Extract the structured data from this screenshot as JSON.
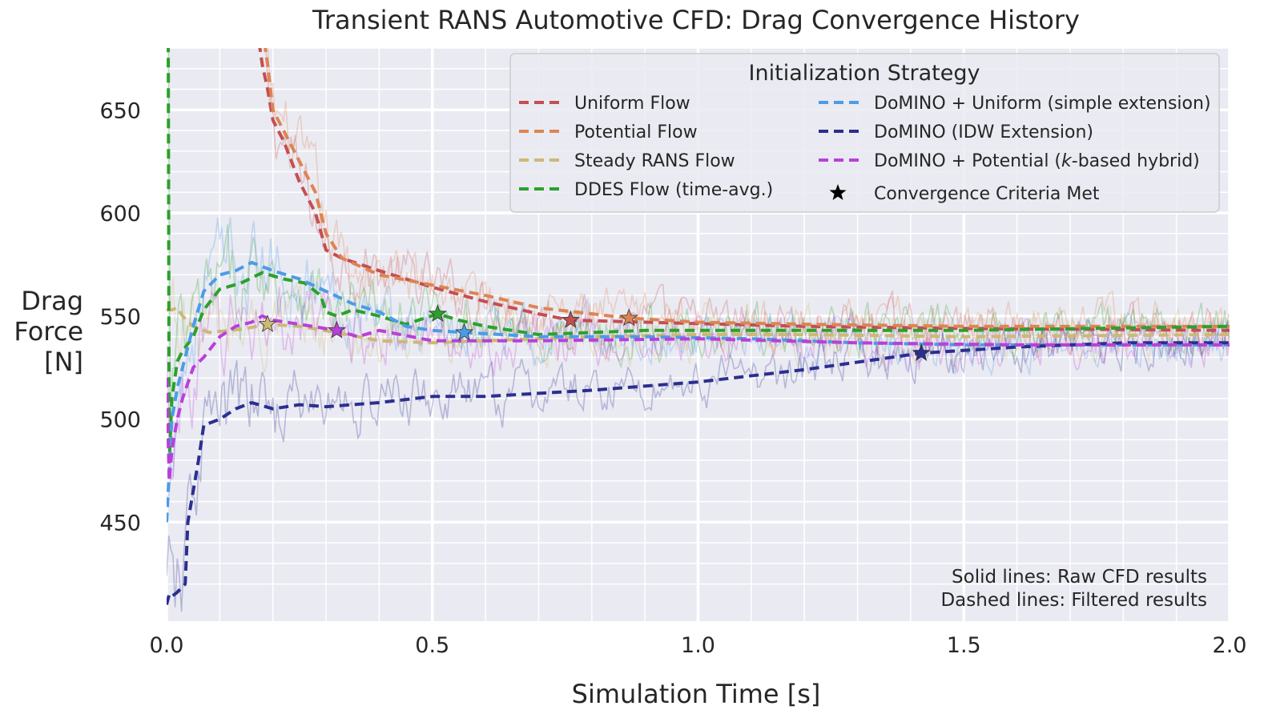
{
  "chart_data": {
    "type": "line",
    "title": "Transient RANS Automotive CFD: Drag Convergence History",
    "xlabel": "Simulation Time [s]",
    "ylabel": [
      "Drag",
      "Force",
      "[N]"
    ],
    "xlim": [
      0,
      2.0
    ],
    "ylim": [
      402,
      680
    ],
    "xticks": [
      0.0,
      0.5,
      1.0,
      1.5,
      2.0
    ],
    "xtick_labels": [
      "0.0",
      "0.5",
      "1.0",
      "1.5",
      "2.0"
    ],
    "yticks": [
      450,
      500,
      550,
      600,
      650
    ],
    "ytick_labels": [
      "450",
      "500",
      "550",
      "600",
      "650"
    ],
    "grid": true,
    "legend": {
      "title": "Initialization Strategy",
      "placement": "top-right",
      "entries": [
        "Uniform Flow",
        "Potential Flow",
        "Steady RANS Flow",
        "DDES Flow (time-avg.)",
        "DoMINO + Uniform (simple extension)",
        "DoMINO (IDW Extension)",
        "DoMINO + Potential (",
        "k",
        "-based hybrid)",
        "Convergence Criteria Met"
      ]
    },
    "annotations": [
      "Solid lines: Raw CFD results",
      "Dashed lines: Filtered results"
    ],
    "series": [
      {
        "name": "Uniform Flow",
        "color": "#c44e52",
        "x": [
          0.17,
          0.18,
          0.19,
          0.2,
          0.22,
          0.25,
          0.28,
          0.3,
          0.33,
          0.4,
          0.5,
          0.6,
          0.7,
          0.76,
          0.9,
          1.2,
          1.5,
          2.0
        ],
        "filtered": [
          690,
          672,
          660,
          645,
          635,
          615,
          600,
          582,
          578,
          572,
          564,
          557,
          551,
          548,
          547,
          545,
          544,
          543
        ],
        "converged_at": [
          0.76,
          548
        ]
      },
      {
        "name": "Potential Flow",
        "color": "#dd8452",
        "x": [
          0.18,
          0.19,
          0.2,
          0.22,
          0.25,
          0.28,
          0.3,
          0.33,
          0.4,
          0.5,
          0.6,
          0.7,
          0.87,
          1.0,
          1.2,
          1.5,
          2.0
        ],
        "filtered": [
          690,
          672,
          650,
          640,
          625,
          610,
          590,
          578,
          570,
          565,
          560,
          554,
          549,
          547,
          546,
          545,
          545
        ],
        "converged_at": [
          0.87,
          549
        ]
      },
      {
        "name": "Steady RANS Flow",
        "color": "#ccb974",
        "x": [
          0.0,
          0.01,
          0.02,
          0.03,
          0.05,
          0.08,
          0.12,
          0.15,
          0.19,
          0.25,
          0.32,
          0.4,
          0.5,
          0.6,
          0.8,
          1.0,
          1.2,
          1.5,
          2.0
        ],
        "filtered": [
          553,
          553,
          554,
          550,
          545,
          542,
          543,
          544,
          546,
          545,
          542,
          538,
          537,
          538,
          540,
          541,
          541,
          540,
          541
        ],
        "converged_at": [
          0.19,
          546
        ]
      },
      {
        "name": "DDES Flow (time-avg.)",
        "color": "#2ca02c",
        "x": [
          0.003,
          0.005,
          0.01,
          0.02,
          0.03,
          0.05,
          0.07,
          0.1,
          0.14,
          0.18,
          0.22,
          0.26,
          0.29,
          0.3,
          0.32,
          0.35,
          0.4,
          0.45,
          0.51,
          0.55,
          0.6,
          0.7,
          0.9,
          1.2,
          1.5,
          2.0
        ],
        "filtered": [
          690,
          480,
          510,
          528,
          533,
          540,
          553,
          563,
          566,
          571,
          568,
          566,
          560,
          552,
          550,
          553,
          550,
          546,
          551,
          548,
          545,
          541,
          543,
          543,
          543,
          545
        ],
        "converged_at": [
          0.51,
          551
        ]
      },
      {
        "name": "DoMINO + Uniform (simple extension)",
        "color": "#4c9be8",
        "x": [
          0.0,
          0.01,
          0.02,
          0.03,
          0.05,
          0.07,
          0.1,
          0.13,
          0.16,
          0.2,
          0.25,
          0.3,
          0.35,
          0.4,
          0.45,
          0.5,
          0.56,
          0.7,
          0.9,
          1.1,
          1.3,
          1.5,
          1.7,
          2.0
        ],
        "filtered": [
          450,
          500,
          515,
          525,
          545,
          562,
          570,
          572,
          576,
          572,
          568,
          562,
          556,
          552,
          545,
          543,
          542,
          540,
          540,
          539,
          537,
          536,
          536,
          536
        ],
        "converged_at": [
          0.56,
          542
        ]
      },
      {
        "name": "DoMINO (IDW Extension)",
        "color": "#2a2f8f",
        "x": [
          0.0,
          0.005,
          0.01,
          0.02,
          0.035,
          0.04,
          0.06,
          0.07,
          0.08,
          0.1,
          0.13,
          0.16,
          0.2,
          0.25,
          0.3,
          0.4,
          0.5,
          0.6,
          0.8,
          1.0,
          1.2,
          1.42,
          1.6,
          1.8,
          2.0
        ],
        "filtered": [
          410,
          415,
          414,
          416,
          420,
          450,
          480,
          497,
          498,
          500,
          505,
          508,
          505,
          507,
          506,
          508,
          511,
          511,
          514,
          518,
          524,
          532,
          535,
          537,
          537
        ],
        "converged_at": [
          1.42,
          532
        ]
      },
      {
        "name": "DoMINO + Potential (k-based hybrid)",
        "color": "#b940d8",
        "x": [
          0.0,
          0.005,
          0.01,
          0.02,
          0.03,
          0.05,
          0.07,
          0.1,
          0.13,
          0.16,
          0.18,
          0.2,
          0.25,
          0.32,
          0.36,
          0.4,
          0.5,
          0.7,
          1.0,
          1.3,
          1.6,
          2.0
        ],
        "filtered": [
          520,
          470,
          485,
          500,
          510,
          525,
          530,
          540,
          545,
          547,
          550,
          548,
          546,
          543,
          540,
          543,
          538,
          538,
          539,
          537,
          536,
          536
        ],
        "converged_at": [
          0.32,
          543
        ]
      }
    ]
  }
}
